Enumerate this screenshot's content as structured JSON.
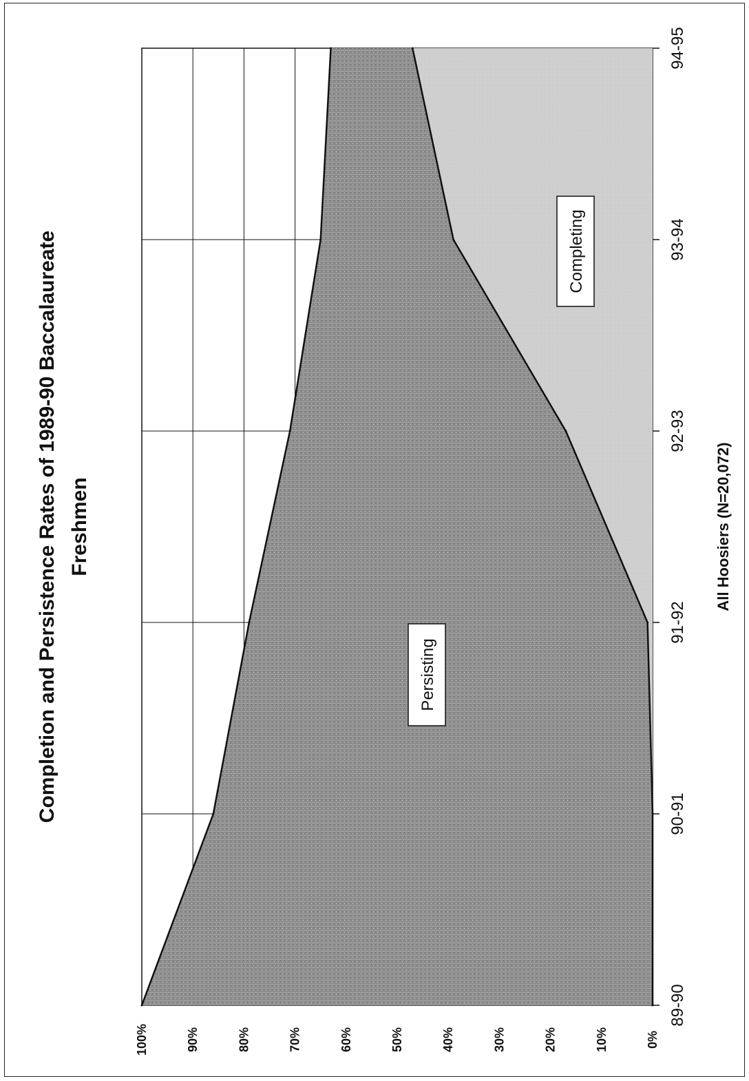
{
  "chart_data": {
    "type": "area",
    "title": "Completion and Persistence Rates of 1989-90 Baccalaureate",
    "title_line2": "Freshmen",
    "xlabel": "All Hoosiers (N=20,072)",
    "ylabel": "",
    "categories": [
      "89-90",
      "90-91",
      "91-92",
      "92-93",
      "93-94",
      "94-95"
    ],
    "ylim": [
      0,
      100
    ],
    "y_ticks": [
      "0%",
      "10%",
      "20%",
      "30%",
      "40%",
      "50%",
      "60%",
      "70%",
      "80%",
      "90%",
      "100%"
    ],
    "y_tick_values": [
      0,
      10,
      20,
      30,
      40,
      50,
      60,
      70,
      80,
      90,
      100
    ],
    "series": [
      {
        "name": "Completing",
        "values": [
          0,
          0,
          1,
          17,
          39,
          47
        ]
      },
      {
        "name": "Persisting",
        "values": [
          100,
          86,
          79,
          71,
          65,
          63
        ]
      }
    ],
    "label_persisting": "Persisting",
    "label_completing": "Completing",
    "orientation": "rotated 90° counter-clockwise",
    "grid": true,
    "colors": {
      "area": "#8f8f8f",
      "line": "#111111",
      "grid": "#000000"
    }
  }
}
